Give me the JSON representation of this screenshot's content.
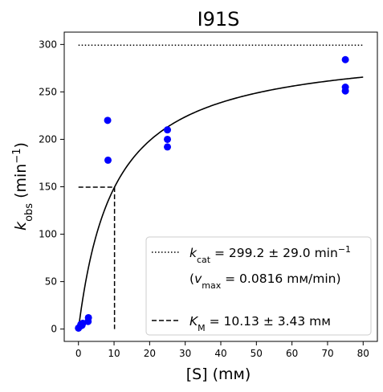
{
  "chart_data": {
    "type": "scatter",
    "title": "I91S",
    "xlabel": "[S] (mм)",
    "ylabel": {
      "main": "k",
      "sub": "obs",
      "rest": " (min",
      "sup": "−1",
      "close": ")"
    },
    "xlim": [
      -4,
      84
    ],
    "ylim": [
      -13,
      313
    ],
    "x_ticks": [
      0,
      10,
      20,
      30,
      40,
      50,
      60,
      70,
      80
    ],
    "y_ticks": [
      0,
      50,
      100,
      150,
      200,
      250,
      300
    ],
    "grid": false,
    "legend_position": "lower-right",
    "points": {
      "color": "#0000ff",
      "x": [
        0,
        0.5,
        0.7,
        1.0,
        1.2,
        2.7,
        2.8,
        8.2,
        8.3,
        25,
        25,
        25,
        75,
        75,
        75
      ],
      "y": [
        1,
        3,
        5,
        4,
        6,
        8,
        12,
        220,
        178,
        210,
        200,
        192,
        284,
        255,
        251
      ]
    },
    "fit_curve": {
      "type": "michaelis-menten",
      "kcat": 299.2,
      "km": 10.13,
      "x_range": [
        0,
        80
      ],
      "color": "#000000"
    },
    "kcat_line": {
      "y": 299.2,
      "x_range": [
        0,
        80
      ],
      "style": "dotted"
    },
    "km_lines": {
      "x": 10.13,
      "y": 149.6,
      "style": "dashed"
    },
    "legend": {
      "kcat": {
        "symbol": "k",
        "sub": "cat",
        "text": " = 299.2 ± 29.0 min",
        "sup": "−1"
      },
      "vmax": {
        "open": "(",
        "symbol": "v",
        "sub": "max",
        "text": " = 0.0816 mм/min)"
      },
      "km": {
        "symbol": "K",
        "sub": "M",
        "text": " = 10.13 ± 3.43 mм"
      }
    }
  }
}
